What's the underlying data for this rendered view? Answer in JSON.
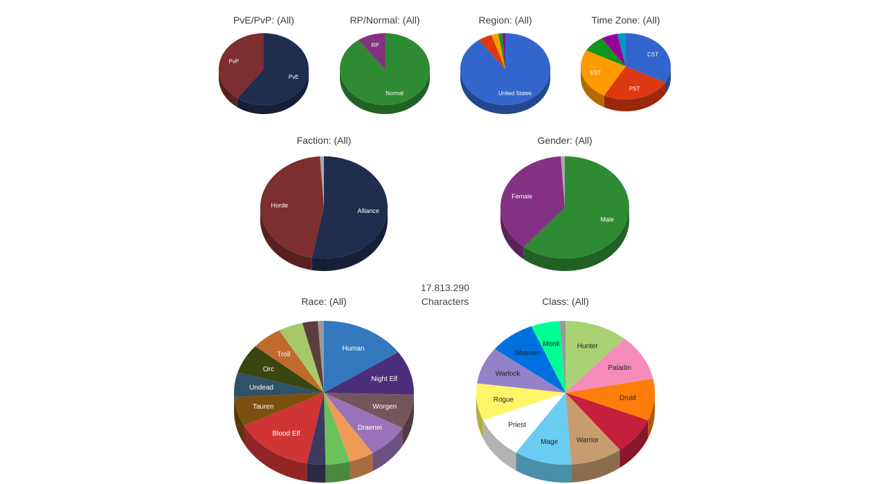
{
  "total": {
    "value": "17.813.290",
    "label": "Characters"
  },
  "chart_data": [
    {
      "id": "pvp",
      "type": "pie",
      "title": "PvE/PvP: (All)",
      "slices": [
        {
          "label": "PvE",
          "value": 60,
          "color": "#1f2d4f",
          "labeled": true
        },
        {
          "label": "PvP",
          "value": 40,
          "color": "#7d2e2e",
          "labeled": true
        }
      ]
    },
    {
      "id": "rp",
      "type": "pie",
      "title": "RP/Normal: (All)",
      "slices": [
        {
          "label": "Normal",
          "value": 90,
          "color": "#2f8a34",
          "labeled": true
        },
        {
          "label": "RP",
          "value": 10,
          "color": "#833182",
          "labeled": true
        }
      ]
    },
    {
      "id": "region",
      "type": "pie",
      "title": "Region: (All)",
      "slices": [
        {
          "label": "United States",
          "value": 90,
          "color": "#3366cc",
          "labeled": true
        },
        {
          "label": "",
          "value": 5,
          "color": "#dc3912",
          "labeled": false
        },
        {
          "label": "",
          "value": 2.5,
          "color": "#ff9900",
          "labeled": false
        },
        {
          "label": "",
          "value": 1.5,
          "color": "#109618",
          "labeled": false
        },
        {
          "label": "",
          "value": 1,
          "color": "#990099",
          "labeled": false
        }
      ]
    },
    {
      "id": "timezone",
      "type": "pie",
      "title": "Time Zone: (All)",
      "slices": [
        {
          "label": "CST",
          "value": 33,
          "color": "#3366cc",
          "labeled": true
        },
        {
          "label": "PST",
          "value": 25,
          "color": "#dc3912",
          "labeled": true
        },
        {
          "label": "EST",
          "value": 25,
          "color": "#ff9900",
          "labeled": true
        },
        {
          "label": "",
          "value": 8,
          "color": "#109618",
          "labeled": false
        },
        {
          "label": "",
          "value": 6,
          "color": "#990099",
          "labeled": false
        },
        {
          "label": "",
          "value": 3,
          "color": "#0099c6",
          "labeled": false
        }
      ]
    },
    {
      "id": "faction",
      "type": "pie",
      "title": "Faction: (All)",
      "slices": [
        {
          "label": "Alliance",
          "value": 53,
          "color": "#1f2d4f",
          "labeled": true
        },
        {
          "label": "Horde",
          "value": 46,
          "color": "#7d2e2e",
          "labeled": true
        },
        {
          "label": "",
          "value": 1,
          "color": "#aaaaaa",
          "labeled": false
        }
      ]
    },
    {
      "id": "gender",
      "type": "pie",
      "title": "Gender: (All)",
      "slices": [
        {
          "label": "Male",
          "value": 61,
          "color": "#2f8a34",
          "labeled": true
        },
        {
          "label": "Female",
          "value": 38,
          "color": "#833182",
          "labeled": true
        },
        {
          "label": "",
          "value": 1,
          "color": "#aaaaaa",
          "labeled": false
        }
      ]
    },
    {
      "id": "race",
      "type": "pie",
      "title": "Race: (All)",
      "slices": [
        {
          "label": "Human",
          "value": 14,
          "color": "#3478bd",
          "labeled": true
        },
        {
          "label": "Night Elf",
          "value": 9,
          "color": "#4b2e7a",
          "labeled": true
        },
        {
          "label": "Worgen",
          "value": 7,
          "color": "#74555c",
          "labeled": true
        },
        {
          "label": "Draenei",
          "value": 7,
          "color": "#9a72b9",
          "labeled": true
        },
        {
          "label": "",
          "value": 4,
          "color": "#f09a59",
          "labeled": false
        },
        {
          "label": "",
          "value": 4,
          "color": "#6bc25b",
          "labeled": false
        },
        {
          "label": "",
          "value": 3,
          "color": "#3d3a62",
          "labeled": false
        },
        {
          "label": "Blood Elf",
          "value": 13,
          "color": "#cf3535",
          "labeled": true
        },
        {
          "label": "Tauren",
          "value": 6,
          "color": "#7c4f0e",
          "labeled": true
        },
        {
          "label": "Undead",
          "value": 5,
          "color": "#2f5266",
          "labeled": true
        },
        {
          "label": "Orc",
          "value": 6,
          "color": "#3a4610",
          "labeled": true
        },
        {
          "label": "Troll",
          "value": 5,
          "color": "#c06a2e",
          "labeled": true
        },
        {
          "label": "",
          "value": 4,
          "color": "#a8c96a",
          "labeled": false
        },
        {
          "label": "",
          "value": 2.5,
          "color": "#5b3e3e",
          "labeled": false
        },
        {
          "label": "",
          "value": 1,
          "color": "#999999",
          "labeled": false
        }
      ]
    },
    {
      "id": "class",
      "type": "pie",
      "title": "Class: (All)",
      "slices": [
        {
          "label": "Hunter",
          "value": 11,
          "color": "#a9d273",
          "labeled": true,
          "dark": true
        },
        {
          "label": "Paladin",
          "value": 10,
          "color": "#f58cba",
          "labeled": true,
          "dark": true
        },
        {
          "label": "Druid",
          "value": 9,
          "color": "#ff7d0a",
          "labeled": true,
          "dark": true
        },
        {
          "label": "",
          "value": 8,
          "color": "#c41f3b",
          "labeled": false
        },
        {
          "label": "Warrior",
          "value": 9,
          "color": "#c79c6e",
          "labeled": true,
          "dark": true
        },
        {
          "label": "Mage",
          "value": 10,
          "color": "#69ccf0",
          "labeled": true,
          "dark": true
        },
        {
          "label": "Priest",
          "value": 9,
          "color": "#ffffff",
          "labeled": true,
          "dark": true
        },
        {
          "label": "Rogue",
          "value": 8,
          "color": "#fff569",
          "labeled": true,
          "dark": true
        },
        {
          "label": "Warlock",
          "value": 8,
          "color": "#9482c9",
          "labeled": true,
          "dark": true
        },
        {
          "label": "Shaman",
          "value": 8,
          "color": "#0070de",
          "labeled": true,
          "dark": true
        },
        {
          "label": "Monk",
          "value": 5,
          "color": "#00ff96",
          "labeled": true,
          "dark": true
        },
        {
          "label": "",
          "value": 1,
          "color": "#999999",
          "labeled": false
        }
      ]
    }
  ]
}
